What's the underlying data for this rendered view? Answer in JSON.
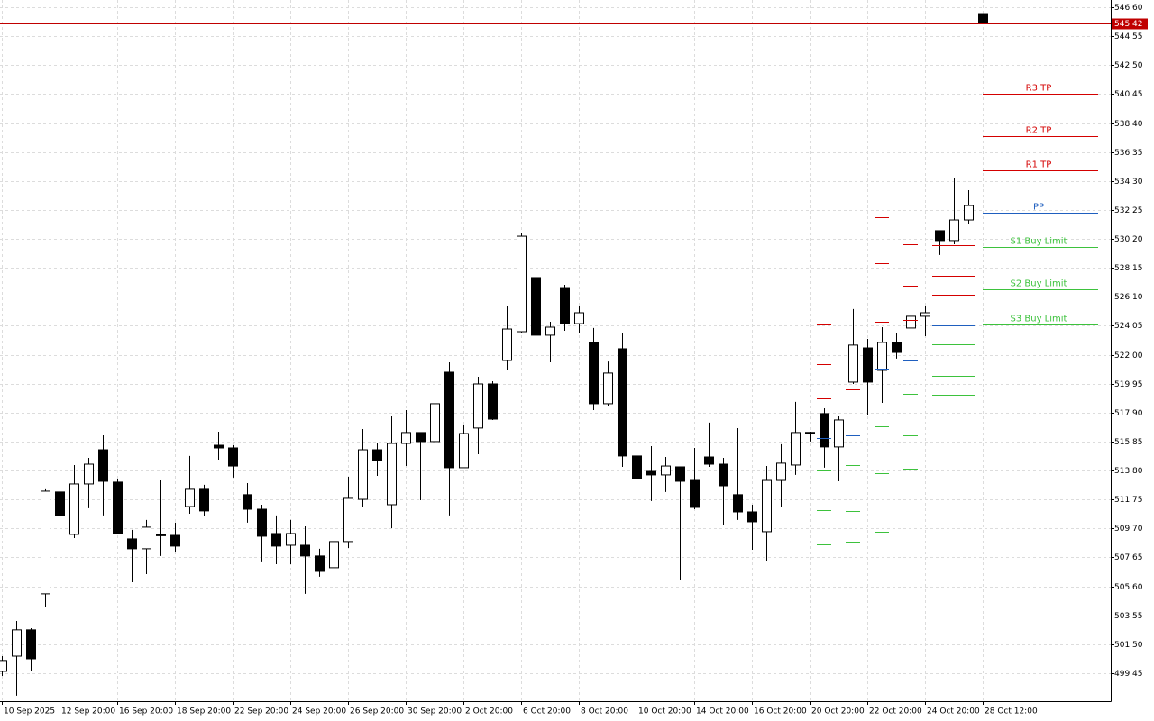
{
  "chart_data": {
    "type": "candlestick",
    "categories": [
      "10 Sep 2025",
      null,
      null,
      null,
      "12 Sep 20:00",
      null,
      null,
      null,
      "16 Sep 20:00",
      null,
      null,
      null,
      "18 Sep 20:00",
      null,
      null,
      null,
      "22 Sep 20:00",
      null,
      null,
      null,
      "24 Sep 20:00",
      null,
      null,
      null,
      "26 Sep 20:00",
      null,
      null,
      null,
      "30 Sep 20:00",
      null,
      null,
      null,
      "2 Oct 20:00",
      null,
      null,
      null,
      "6 Oct 20:00",
      null,
      null,
      null,
      "8 Oct 20:00",
      null,
      null,
      null,
      "10 Oct 20:00",
      null,
      null,
      null,
      "14 Oct 20:00",
      null,
      null,
      null,
      "16 Oct 20:00",
      null,
      null,
      null,
      "20 Oct 20:00",
      null,
      null,
      null,
      "22 Oct 20:00",
      null,
      null,
      null,
      "24 Oct 20:00",
      null,
      null,
      null,
      "28 Oct 12:00"
    ],
    "open": [
      499.58,
      500.66,
      502.52,
      505.07,
      512.28,
      509.28,
      512.85,
      515.27,
      512.98,
      508.96,
      508.26,
      509.2,
      509.21,
      511.25,
      512.47,
      515.59,
      515.4,
      512.09,
      511.06,
      509.34,
      508.51,
      508.51,
      507.75,
      506.92,
      508.77,
      511.76,
      515.27,
      511.38,
      515.72,
      516.49,
      515.85,
      520.76,
      514.0,
      516.81,
      519.93,
      521.59,
      523.63,
      527.46,
      523.38,
      526.69,
      524.2,
      522.87,
      518.53,
      522.42,
      514.83,
      513.74,
      513.49,
      514.06,
      513.1,
      514.76,
      514.25,
      512.09,
      510.87,
      509.47,
      513.1,
      514.19,
      516.5,
      517.83,
      515.47,
      520.06,
      522.48,
      520.89,
      522.87,
      523.89,
      524.72,
      530.78,
      530.08,
      531.54,
      546.15
    ],
    "high": [
      500.66,
      503.15,
      502.64,
      512.47,
      512.59,
      514.19,
      514.7,
      516.29,
      513.23,
      509.6,
      510.3,
      513.1,
      510.11,
      514.83,
      512.79,
      516.55,
      515.59,
      512.91,
      511.38,
      510.62,
      510.3,
      509.85,
      508.26,
      513.93,
      513.36,
      516.74,
      515.72,
      517.63,
      518.08,
      516.49,
      520.57,
      521.46,
      517.0,
      520.44,
      520.12,
      525.42,
      530.65,
      528.42,
      524.33,
      526.95,
      525.42,
      523.89,
      521.52,
      523.57,
      515.78,
      515.53,
      514.76,
      514.06,
      515.4,
      517.19,
      514.7,
      516.8,
      511.38,
      514.12,
      515.66,
      518.66,
      516.55,
      518.21,
      517.63,
      525.23,
      523.12,
      523.95,
      523.57,
      524.97,
      525.42,
      530.78,
      534.54,
      533.65,
      546.15
    ],
    "low": [
      499.26,
      497.86,
      499.64,
      504.17,
      510.24,
      509.02,
      511.13,
      510.62,
      509.35,
      505.89,
      506.47,
      507.75,
      508.06,
      510.74,
      510.55,
      514.57,
      513.3,
      510.11,
      507.3,
      507.17,
      507.17,
      505.07,
      506.28,
      506.53,
      508.32,
      511.19,
      513.42,
      509.72,
      514.12,
      511.7,
      515.72,
      510.62,
      514.0,
      514.95,
      517.38,
      520.95,
      523.5,
      522.35,
      521.46,
      523.69,
      523.5,
      518.08,
      518.4,
      514.06,
      512.15,
      511.64,
      512.28,
      506.02,
      511.06,
      514.06,
      509.91,
      510.3,
      508.19,
      507.36,
      511.19,
      513.49,
      515.85,
      514.0,
      513.04,
      519.93,
      517.7,
      518.59,
      521.72,
      521.85,
      523.31,
      529.06,
      529.82,
      531.29,
      545.51
    ],
    "close": [
      500.35,
      502.52,
      500.47,
      512.34,
      510.62,
      512.85,
      514.25,
      513.04,
      509.35,
      508.26,
      509.79,
      509.25,
      508.45,
      512.47,
      510.94,
      515.4,
      514.12,
      511.06,
      509.15,
      508.45,
      509.34,
      507.75,
      506.66,
      508.77,
      511.83,
      515.27,
      514.51,
      515.72,
      516.49,
      515.85,
      518.53,
      514.0,
      516.42,
      519.93,
      517.44,
      523.82,
      530.39,
      523.38,
      523.95,
      524.2,
      524.97,
      518.53,
      520.7,
      514.83,
      513.23,
      513.49,
      514.12,
      513.04,
      511.19,
      514.25,
      512.72,
      510.87,
      510.17,
      513.1,
      514.32,
      516.49,
      516.45,
      515.47,
      517.38,
      522.68,
      520.06,
      522.87,
      522.16,
      524.72,
      524.97,
      530.08,
      531.54,
      532.56,
      545.51
    ],
    "up_color": "#ffffff",
    "down_color": "#000000",
    "ylim": [
      497.47,
      547.11
    ],
    "yticks": [
      {
        "value": 546.6,
        "label": "546.60"
      },
      544.55,
      {
        "value": 542.5,
        "label": "542.50"
      },
      540.45,
      {
        "value": 538.4,
        "label": "538.40"
      },
      536.35,
      {
        "value": 534.3,
        "label": "534.30"
      },
      532.25,
      {
        "value": 530.2,
        "label": "530.20"
      },
      528.15,
      {
        "value": 526.1,
        "label": "526.10"
      },
      524.05,
      {
        "value": 522.0,
        "label": "522.00"
      },
      519.95,
      {
        "value": 517.9,
        "label": "517.90"
      },
      515.85,
      {
        "value": 513.8,
        "label": "513.80"
      },
      511.75,
      {
        "value": 509.7,
        "label": "509.70"
      },
      507.65,
      {
        "value": 505.6,
        "label": "505.60"
      },
      503.55,
      {
        "value": 501.5,
        "label": "501.50"
      },
      499.45
    ],
    "grid": true,
    "current_price": 545.42,
    "current_price_color": "#c00000",
    "levels": [
      {
        "name": "R3 TP",
        "value": 540.47,
        "color": "#d40000"
      },
      {
        "name": "R2 TP",
        "value": 537.47,
        "color": "#d40000"
      },
      {
        "name": "R1 TP",
        "value": 535.05,
        "color": "#d40000"
      },
      {
        "name": "PP",
        "value": 532.05,
        "color": "#1f5fbf"
      },
      {
        "name": "S1 Buy Limit",
        "value": 529.63,
        "color": "#3dc23d"
      },
      {
        "name": "S2 Buy Limit",
        "value": 526.63,
        "color": "#3dc23d"
      },
      {
        "name": "S3 Buy Limit",
        "value": 524.14,
        "color": "#3dc23d"
      }
    ],
    "pivot_history": [
      {
        "values": [
          524.14,
          521.33,
          518.91,
          516.1,
          513.81,
          511.0,
          508.58
        ]
      },
      {
        "values": [
          524.84,
          521.65,
          519.55,
          516.29,
          514.19,
          510.96,
          508.79
        ]
      },
      {
        "values": [
          531.73,
          528.48,
          524.33,
          521.01,
          516.93,
          513.62,
          509.47
        ]
      },
      {
        "values": [
          529.82,
          526.89,
          524.46,
          521.59,
          519.23,
          516.29,
          513.93
        ]
      },
      {
        "values": [
          529.76,
          527.59,
          526.25,
          524.08,
          522.74,
          520.5,
          519.17
        ]
      }
    ]
  }
}
